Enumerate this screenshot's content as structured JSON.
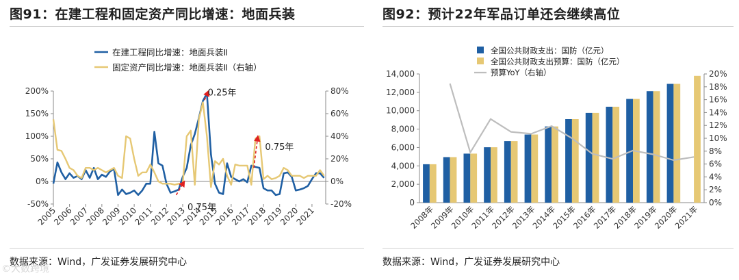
{
  "left": {
    "title": "图91：在建工程和固定资产同比增速：地面兵装",
    "source": "数据来源：Wind，广发证券发展研究中心",
    "chart_data": {
      "type": "line",
      "title": "",
      "x_ticks": [
        "2005",
        "2006",
        "2007",
        "2008",
        "2009",
        "2010",
        "2011",
        "2012",
        "2013",
        "2014",
        "2015",
        "2016",
        "2017",
        "2018",
        "2019",
        "2020",
        "2021"
      ],
      "y_left": {
        "ticks": [
          "200%",
          "150%",
          "100%",
          "50%",
          "0%",
          "-50%"
        ],
        "range": [
          -50,
          200
        ]
      },
      "y_right": {
        "ticks": [
          "80%",
          "60%",
          "40%",
          "20%",
          "0%",
          "-20%"
        ],
        "range": [
          -20,
          80
        ]
      },
      "legend_position": "top-left",
      "series": [
        {
          "name": "在建工程同比增速：地面兵装Ⅱ",
          "color": "#1f5fa3",
          "axis": "left",
          "x": [
            2005.0,
            2005.25,
            2005.5,
            2005.75,
            2006.0,
            2006.25,
            2006.5,
            2006.75,
            2007.0,
            2007.25,
            2007.5,
            2007.75,
            2008.0,
            2008.25,
            2008.5,
            2008.75,
            2009.0,
            2009.25,
            2009.5,
            2009.75,
            2010.0,
            2010.25,
            2010.5,
            2010.75,
            2011.0,
            2011.25,
            2011.5,
            2011.75,
            2012.0,
            2012.25,
            2012.5,
            2012.75,
            2013.0,
            2013.25,
            2013.5,
            2013.75,
            2014.0,
            2014.25,
            2014.5,
            2014.75,
            2015.0,
            2015.25,
            2015.5,
            2015.75,
            2016.0,
            2016.25,
            2016.5,
            2016.75,
            2017.0,
            2017.25,
            2017.5,
            2017.75,
            2018.0,
            2018.25,
            2018.5,
            2018.75,
            2019.0,
            2019.25,
            2019.5,
            2019.75,
            2020.0,
            2020.25,
            2020.5,
            2020.75,
            2021.0,
            2021.25,
            2021.5,
            2021.75
          ],
          "y": [
            -5,
            42,
            20,
            5,
            18,
            8,
            12,
            5,
            25,
            8,
            30,
            5,
            15,
            10,
            22,
            28,
            -30,
            -18,
            -28,
            -25,
            -20,
            -30,
            -20,
            -5,
            -5,
            110,
            40,
            35,
            -5,
            -25,
            -22,
            -18,
            10,
            30,
            80,
            105,
            140,
            178,
            195,
            60,
            -5,
            -25,
            -28,
            40,
            10,
            5,
            0,
            5,
            -2,
            35,
            32,
            30,
            -15,
            -20,
            -20,
            -30,
            -28,
            18,
            20,
            10,
            -20,
            -18,
            -15,
            -10,
            5,
            18,
            18,
            8
          ]
        },
        {
          "name": "固定资产同比增速：地面兵装Ⅱ（右轴）",
          "color": "#e6c874",
          "axis": "right",
          "x": [
            2005.0,
            2005.25,
            2005.5,
            2005.75,
            2006.0,
            2006.25,
            2006.5,
            2006.75,
            2007.0,
            2007.25,
            2007.5,
            2007.75,
            2008.0,
            2008.25,
            2008.5,
            2008.75,
            2009.0,
            2009.25,
            2009.5,
            2009.75,
            2010.0,
            2010.25,
            2010.5,
            2010.75,
            2011.0,
            2011.25,
            2011.5,
            2011.75,
            2012.0,
            2012.25,
            2012.5,
            2012.75,
            2013.0,
            2013.25,
            2013.5,
            2013.75,
            2014.0,
            2014.25,
            2014.5,
            2014.75,
            2015.0,
            2015.25,
            2015.5,
            2015.75,
            2016.0,
            2016.25,
            2016.5,
            2016.75,
            2017.0,
            2017.25,
            2017.5,
            2017.75,
            2018.0,
            2018.25,
            2018.5,
            2018.75,
            2019.0,
            2019.25,
            2019.5,
            2019.75,
            2020.0,
            2020.25,
            2020.5,
            2020.75,
            2021.0,
            2021.25,
            2021.5,
            2021.75
          ],
          "y": [
            55,
            28,
            27,
            20,
            12,
            10,
            5,
            3,
            12,
            12,
            10,
            12,
            10,
            8,
            10,
            12,
            5,
            3,
            40,
            38,
            20,
            5,
            8,
            8,
            15,
            8,
            0,
            -2,
            -2,
            -2,
            -3,
            -2,
            -2,
            40,
            45,
            -3,
            55,
            70,
            40,
            -5,
            18,
            15,
            20,
            5,
            -3,
            15,
            14,
            14,
            14,
            -3,
            38,
            40,
            2,
            5,
            2,
            3,
            5,
            12,
            10,
            5,
            5,
            5,
            3,
            5,
            5,
            5,
            10,
            5
          ]
        }
      ],
      "annotations": [
        {
          "text": "0.25年",
          "x": 2014.55,
          "y": 190,
          "arrow_from": [
            2014.35,
            180
          ],
          "arrow_to": [
            2014.6,
            200
          ]
        },
        {
          "text": "0.75年",
          "x": 2013.3,
          "y": -30,
          "arrow_from": [
            2012.6,
            -30
          ],
          "arrow_to": [
            2013.1,
            0
          ]
        },
        {
          "text": "0.75年",
          "x": 2018.1,
          "y": 70,
          "arrow_from": [
            2017.4,
            30
          ],
          "arrow_to": [
            2017.65,
            100
          ]
        }
      ]
    }
  },
  "right": {
    "title": "图92：预计22年军品订单还会继续高位",
    "source": "数据来源：Wind，广发证券发展研究中心",
    "chart_data": {
      "type": "bar",
      "title": "",
      "categories": [
        "2008年",
        "2009年",
        "2010年",
        "2011年",
        "2012年",
        "2013年",
        "2014年",
        "2015年",
        "2016年",
        "2017年",
        "2018年",
        "2019年",
        "2020年",
        "2021年"
      ],
      "y_left": {
        "ticks": [
          "14,000",
          "12,000",
          "10,000",
          "8,000",
          "6,000",
          "4,000",
          "2,000",
          "0"
        ],
        "range": [
          0,
          14000
        ]
      },
      "y_right": {
        "ticks": [
          "20%",
          "18%",
          "16%",
          "14%",
          "12%",
          "10%",
          "8%",
          "6%",
          "4%",
          "2%",
          "0%"
        ],
        "range": [
          0,
          20
        ]
      },
      "legend_position": "top-left",
      "series": [
        {
          "name": "全国公共财政支出：国防（亿元）",
          "color": "#1f5fa3",
          "type": "bar",
          "values": [
            4179,
            4951,
            5334,
            6028,
            6691,
            7411,
            8290,
            9088,
            9766,
            10432,
            11280,
            12122,
            12918,
            null
          ]
        },
        {
          "name": "全国公共财政支出预算：国防（亿元）",
          "color": "#e6c874",
          "type": "bar",
          "values": [
            4179,
            4951,
            5334,
            6028,
            6691,
            7411,
            8290,
            9088,
            9766,
            10432,
            11280,
            12122,
            12918,
            13795
          ]
        },
        {
          "name": "预算YoY（右轴）",
          "color": "#bdbdbd",
          "type": "line",
          "axis": "right",
          "values": [
            null,
            18.5,
            7.8,
            13.0,
            11.0,
            10.7,
            11.9,
            10.0,
            7.6,
            6.8,
            8.1,
            7.5,
            6.6,
            7.1
          ]
        }
      ]
    }
  },
  "watermark": "©大数跨境"
}
